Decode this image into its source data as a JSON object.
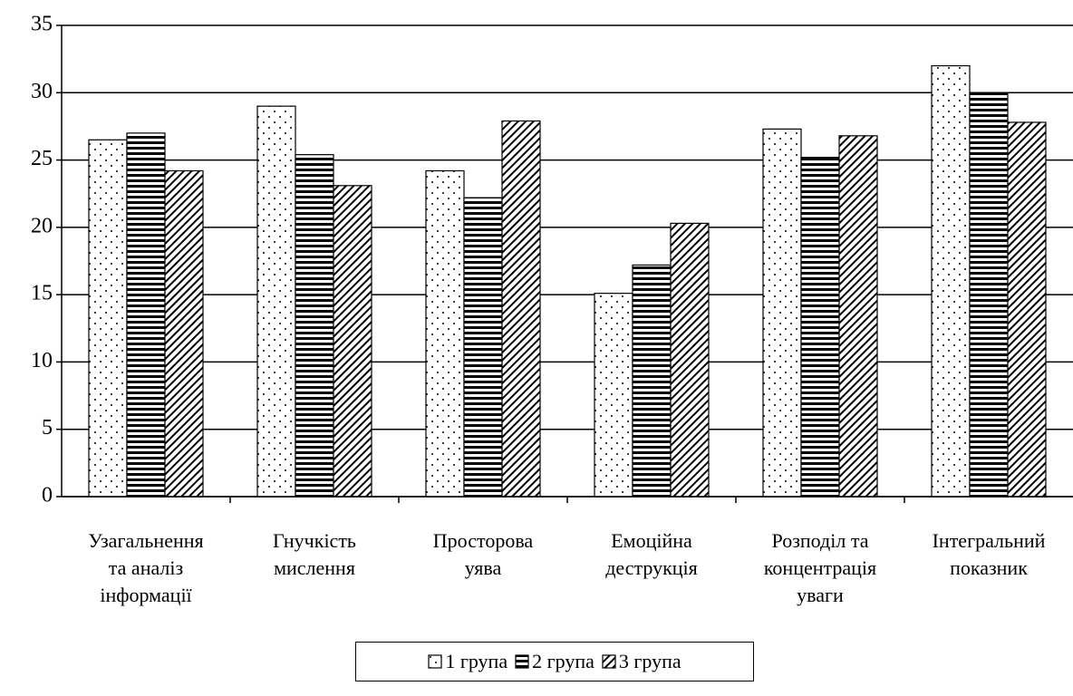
{
  "chart_data": {
    "type": "bar",
    "categories": [
      "Узагальнення\nта аналіз\nінформації",
      "Гнучкість\nмислення",
      "Просторова\nуява",
      "Емоційна\nдеструкція",
      "Розподіл та\nконцентрація\nуваги",
      "Інтегральний\nпоказник"
    ],
    "series": [
      {
        "name": "1 група",
        "color": "#ffffff",
        "pattern": "dots",
        "values": [
          26.5,
          29.0,
          24.2,
          15.1,
          27.3,
          32.0
        ]
      },
      {
        "name": "2 група",
        "color": "#000000",
        "pattern": "horizontal",
        "values": [
          27.0,
          25.4,
          22.2,
          17.2,
          25.2,
          30.0
        ]
      },
      {
        "name": "3 група",
        "color": "#000000",
        "pattern": "diagonal",
        "values": [
          24.2,
          23.1,
          27.9,
          20.3,
          26.8,
          27.8
        ]
      }
    ],
    "ylim": [
      0,
      35
    ],
    "yticks": [
      0,
      5,
      10,
      15,
      20,
      25,
      30,
      35
    ],
    "grid": true,
    "legend": "bottom"
  }
}
